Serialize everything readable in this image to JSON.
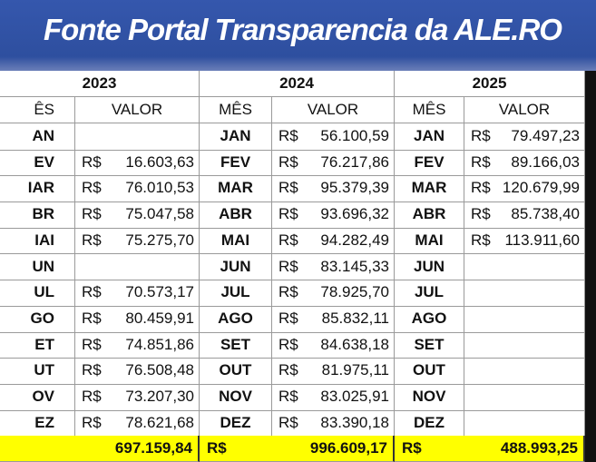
{
  "header": {
    "title": "Fonte Portal Transparencia da ALE.RO"
  },
  "table": {
    "years": [
      "2023",
      "2024",
      "2025"
    ],
    "column_headers": [
      "ÊS",
      "VALOR",
      "MÊS",
      "VALOR",
      "MÊS",
      "VALOR"
    ],
    "currency": "R$",
    "rows": [
      [
        "AN",
        null,
        "JAN",
        "56.100,59",
        "JAN",
        "79.497,23"
      ],
      [
        "EV",
        "16.603,63",
        "FEV",
        "76.217,86",
        "FEV",
        "89.166,03"
      ],
      [
        "IAR",
        "76.010,53",
        "MAR",
        "95.379,39",
        "MAR",
        "120.679,99"
      ],
      [
        "BR",
        "75.047,58",
        "ABR",
        "93.696,32",
        "ABR",
        "85.738,40"
      ],
      [
        "IAI",
        "75.275,70",
        "MAI",
        "94.282,49",
        "MAI",
        "113.911,60"
      ],
      [
        "UN",
        null,
        "JUN",
        "83.145,33",
        "JUN",
        null
      ],
      [
        "UL",
        "70.573,17",
        "JUL",
        "78.925,70",
        "JUL",
        null
      ],
      [
        "GO",
        "80.459,91",
        "AGO",
        "85.832,11",
        "AGO",
        null
      ],
      [
        "ET",
        "74.851,86",
        "SET",
        "84.638,18",
        "SET",
        null
      ],
      [
        "UT",
        "76.508,48",
        "OUT",
        "81.975,11",
        "OUT",
        null
      ],
      [
        "OV",
        "73.207,30",
        "NOV",
        "83.025,91",
        "NOV",
        null
      ],
      [
        "EZ",
        "78.621,68",
        "DEZ",
        "83.390,18",
        "DEZ",
        null
      ]
    ],
    "totals": [
      "697.159,84",
      "996.609,17",
      "488.993,25"
    ]
  }
}
